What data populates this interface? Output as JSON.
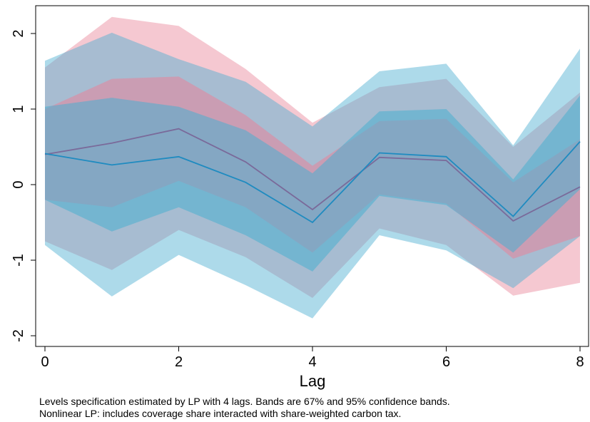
{
  "chart_data": {
    "type": "area",
    "xlabel": "Lag",
    "ylabel": "",
    "xlim": [
      0,
      8
    ],
    "ylim": [
      -2.2,
      2.3
    ],
    "x_ticks": [
      0,
      2,
      4,
      6,
      8
    ],
    "y_ticks": [
      -2,
      -1,
      0,
      1,
      2
    ],
    "grid": false,
    "x": [
      0,
      1,
      2,
      3,
      4,
      5,
      6,
      7,
      8
    ],
    "series": [
      {
        "color": "#e8849a",
        "point_estimate": [
          0.4,
          0.55,
          0.74,
          0.3,
          -0.33,
          0.36,
          0.32,
          -0.48,
          -0.03
        ],
        "band_67": {
          "lower": [
            -0.2,
            -0.3,
            0.05,
            -0.3,
            -0.9,
            -0.13,
            -0.25,
            -0.98,
            -0.68
          ],
          "upper": [
            1.0,
            1.4,
            1.43,
            0.92,
            0.25,
            0.84,
            0.87,
            0.03,
            0.6
          ]
        },
        "band_95": {
          "lower": [
            -0.75,
            -1.13,
            -0.6,
            -0.96,
            -1.5,
            -0.58,
            -0.8,
            -1.47,
            -1.3
          ],
          "upper": [
            1.55,
            2.22,
            2.1,
            1.53,
            0.82,
            1.29,
            1.4,
            0.5,
            1.22
          ]
        }
      },
      {
        "color": "#4aaed0",
        "point_estimate": [
          0.41,
          0.26,
          0.37,
          0.03,
          -0.5,
          0.42,
          0.37,
          -0.42,
          0.57
        ],
        "band_67": {
          "lower": [
            -0.2,
            -0.62,
            -0.3,
            -0.67,
            -1.15,
            -0.15,
            -0.27,
            -0.9,
            -0.06
          ],
          "upper": [
            1.03,
            1.15,
            1.03,
            0.72,
            0.15,
            0.97,
            1.0,
            0.07,
            1.18
          ]
        },
        "band_95": {
          "lower": [
            -0.8,
            -1.48,
            -0.93,
            -1.33,
            -1.77,
            -0.67,
            -0.87,
            -1.37,
            -0.68
          ],
          "upper": [
            1.64,
            2.01,
            1.66,
            1.36,
            0.77,
            1.5,
            1.6,
            0.52,
            1.8
          ]
        }
      }
    ],
    "notes": [
      "Levels specification estimated by LP with 4 lags. Bands are 67% and 95% confidence bands.",
      "Nonlinear LP: includes coverage share interacted with share-weighted carbon tax."
    ]
  }
}
